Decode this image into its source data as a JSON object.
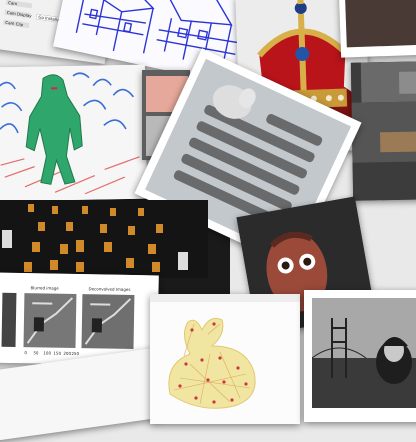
{
  "tiles": {
    "code_ui": {
      "row1": "Cam",
      "row2": "Cam Display",
      "row3": "Cam Clip",
      "label": "Go Installation"
    },
    "bw_plot": {
      "left_title": "Blurred image",
      "right_title": "Deconvolved Images",
      "ticks": [
        "0",
        "50",
        "100",
        "150",
        "200",
        "250"
      ]
    }
  }
}
